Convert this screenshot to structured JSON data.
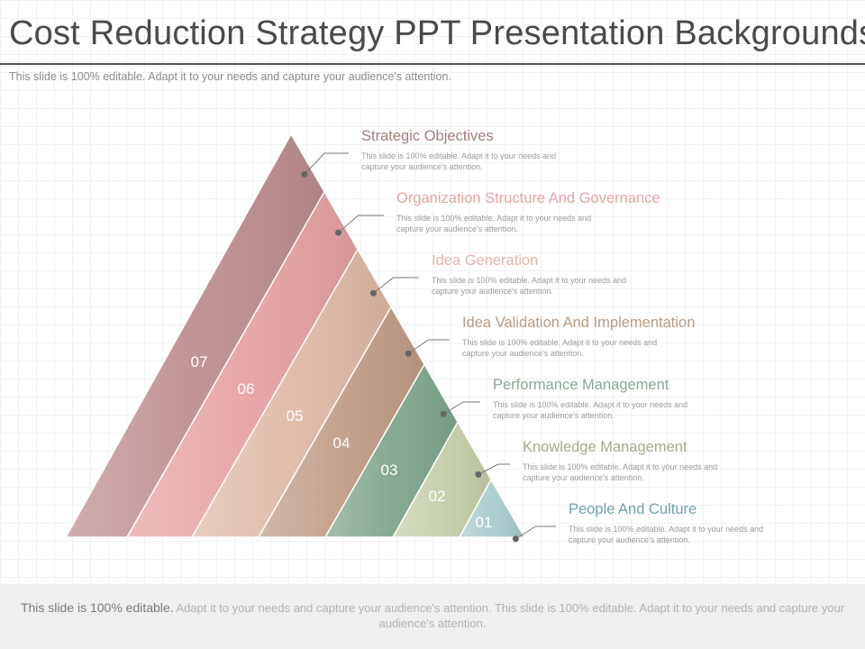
{
  "header": {
    "title": "Cost Reduction Strategy PPT Presentation Backgrounds",
    "subtitle": "This slide is 100% editable. Adapt it to your needs and capture your audience's attention."
  },
  "levels": [
    {
      "num": "07",
      "title": "Strategic Objectives",
      "desc": "This slide is 100% editable. Adapt it to your needs and capture your audience's attention.",
      "color": "#be8e91",
      "title_color": "#a87a7c"
    },
    {
      "num": "06",
      "title": "Organization Structure And Governance",
      "desc": "This slide is 100% editable. Adapt it to your needs and capture your audience's attention.",
      "color": "#e6a3a4",
      "title_color": "#e5a5a5"
    },
    {
      "num": "05",
      "title": "Idea Generation",
      "desc": "This slide is 100% editable. Adapt it to your needs and capture your audience's attention.",
      "color": "#e0baa5",
      "title_color": "#e3b5a4"
    },
    {
      "num": "04",
      "title": "Idea Validation And Implementation",
      "desc": "This slide is 100% editable. Adapt it to your needs and capture your audience's attention.",
      "color": "#c19d86",
      "title_color": "#b99a83"
    },
    {
      "num": "03",
      "title": "Performance Management",
      "desc": "This slide is 100% editable. Adapt it to your needs and capture your audience's attention.",
      "color": "#7fa68d",
      "title_color": "#8aa893"
    },
    {
      "num": "02",
      "title": "Knowledge Management",
      "desc": "This slide is 100% editable. Adapt it to your needs and capture your audience's attention.",
      "color": "#c5cfa9",
      "title_color": "#a3ab88"
    },
    {
      "num": "01",
      "title": "People And Culture",
      "desc": "This slide is 100% editable. Adapt it to your needs and capture your audience's attention.",
      "color": "#a9cccd",
      "title_color": "#6fa2a8"
    }
  ],
  "footer": {
    "lead": "This slide is 100% editable.",
    "rest": " Adapt it to your needs and capture your audience's attention. This slide is 100% editable. Adapt it to your needs and capture your audience's attention."
  }
}
